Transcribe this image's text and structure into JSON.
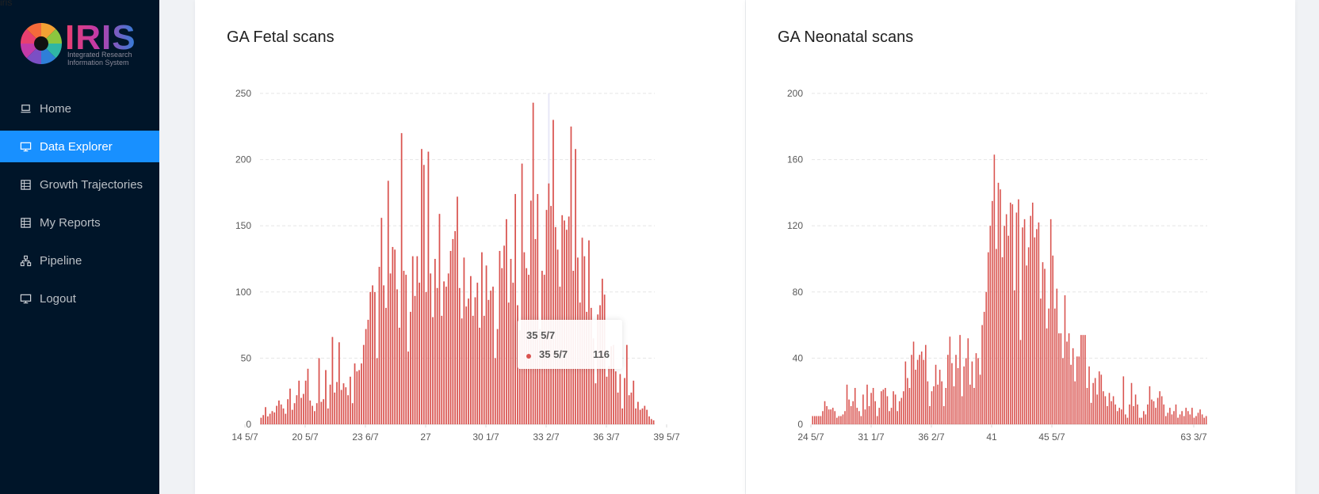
{
  "corner_text": "iris",
  "brand": {
    "title": "IRIS",
    "subtitle_line1": "Integrated Research",
    "subtitle_line2": "Information System"
  },
  "sidebar": {
    "items": [
      {
        "label": "Home",
        "icon": "laptop-icon",
        "active": false
      },
      {
        "label": "Data Explorer",
        "icon": "desktop-icon",
        "active": true
      },
      {
        "label": "Growth Trajectories",
        "icon": "table-icon",
        "active": false
      },
      {
        "label": "My Reports",
        "icon": "table-icon",
        "active": false
      },
      {
        "label": "Pipeline",
        "icon": "cluster-icon",
        "active": false
      },
      {
        "label": "Logout",
        "icon": "desktop-icon",
        "active": false
      }
    ]
  },
  "colors": {
    "bar": "#d9534f",
    "sidebar_bg": "#001529",
    "active": "#1890ff"
  },
  "tooltip": {
    "title": "35 5/7",
    "series_name": "35 5/7",
    "value": "116"
  },
  "chart_data": [
    {
      "type": "bar",
      "title": "GA Fetal scans",
      "xlabel": "",
      "ylabel": "",
      "ylim": [
        0,
        250
      ],
      "y_ticks": [
        "0",
        "50",
        "100",
        "150",
        "200",
        "250"
      ],
      "x_tick_labels": [
        "14 5/7",
        "20 5/7",
        "23 6/7",
        "27",
        "30 1/7",
        "33 2/7",
        "36 3/7",
        "39 5/7"
      ],
      "grid": true,
      "values": [
        5,
        7,
        13,
        6,
        8,
        10,
        9,
        14,
        18,
        15,
        12,
        8,
        19,
        27,
        11,
        16,
        22,
        33,
        20,
        23,
        33,
        42,
        18,
        14,
        10,
        16,
        50,
        17,
        19,
        41,
        12,
        30,
        66,
        24,
        32,
        62,
        26,
        31,
        28,
        22,
        36,
        16,
        46,
        40,
        41,
        46,
        60,
        72,
        79,
        100,
        105,
        100,
        50,
        119,
        156,
        105,
        88,
        184,
        114,
        134,
        132,
        102,
        73,
        220,
        116,
        113,
        55,
        85,
        127,
        97,
        127,
        107,
        208,
        196,
        100,
        206,
        114,
        81,
        125,
        103,
        159,
        82,
        108,
        104,
        114,
        131,
        140,
        146,
        172,
        103,
        80,
        126,
        89,
        95,
        112,
        82,
        96,
        107,
        73,
        130,
        82,
        120,
        94,
        101,
        104,
        50,
        72,
        131,
        118,
        135,
        155,
        92,
        125,
        107,
        174,
        90,
        71,
        197,
        130,
        118,
        113,
        169,
        243,
        140,
        174,
        72,
        116,
        113,
        162,
        182,
        165,
        230,
        149,
        132,
        104,
        158,
        154,
        147,
        157,
        225,
        116,
        208,
        126,
        92,
        141,
        127,
        85,
        139,
        88,
        65,
        31,
        83,
        90,
        110,
        98,
        36,
        44,
        59,
        60,
        40,
        24,
        38,
        12,
        35,
        60,
        22,
        24,
        33,
        12,
        17,
        11,
        12,
        14,
        11,
        6,
        4,
        3
      ]
    },
    {
      "type": "bar",
      "title": "GA Neonatal scans",
      "xlabel": "",
      "ylabel": "",
      "ylim": [
        0,
        200
      ],
      "y_ticks": [
        "0",
        "40",
        "80",
        "120",
        "160",
        "200"
      ],
      "x_tick_labels": [
        "24 5/7",
        "31 1/7",
        "36 2/7",
        "41",
        "45 5/7",
        "63 3/7"
      ],
      "grid": true,
      "values": [
        5,
        5,
        5,
        5,
        5,
        8,
        14,
        11,
        9,
        9,
        10,
        8,
        4,
        5,
        5,
        6,
        8,
        24,
        15,
        11,
        14,
        22,
        10,
        8,
        5,
        18,
        9,
        24,
        11,
        19,
        22,
        14,
        5,
        10,
        20,
        21,
        22,
        17,
        8,
        10,
        20,
        18,
        8,
        14,
        16,
        20,
        38,
        28,
        22,
        42,
        50,
        33,
        39,
        42,
        44,
        39,
        48,
        26,
        11,
        20,
        23,
        36,
        24,
        33,
        26,
        11,
        22,
        42,
        53,
        37,
        23,
        42,
        34,
        54,
        17,
        35,
        40,
        52,
        24,
        38,
        22,
        43,
        40,
        30,
        60,
        68,
        80,
        104,
        120,
        135,
        163,
        106,
        146,
        142,
        101,
        120,
        127,
        114,
        134,
        133,
        81,
        128,
        136,
        51,
        119,
        124,
        96,
        107,
        126,
        134,
        113,
        118,
        122,
        76,
        98,
        94,
        58,
        70,
        124,
        102,
        70,
        82,
        55,
        55,
        40,
        78,
        50,
        55,
        36,
        46,
        26,
        41,
        41,
        54,
        54,
        54,
        22,
        35,
        13,
        25,
        28,
        18,
        32,
        30,
        20,
        17,
        11,
        19,
        14,
        17,
        12,
        8,
        10,
        9,
        29,
        6,
        4,
        12,
        25,
        11,
        18,
        12,
        4,
        4,
        8,
        6,
        12,
        23,
        15,
        14,
        10,
        16,
        20,
        17,
        12,
        5,
        7,
        10,
        6,
        8,
        12,
        4,
        6,
        8,
        5,
        10,
        8,
        6,
        10,
        4,
        5,
        7,
        9,
        6,
        4,
        5
      ]
    }
  ]
}
